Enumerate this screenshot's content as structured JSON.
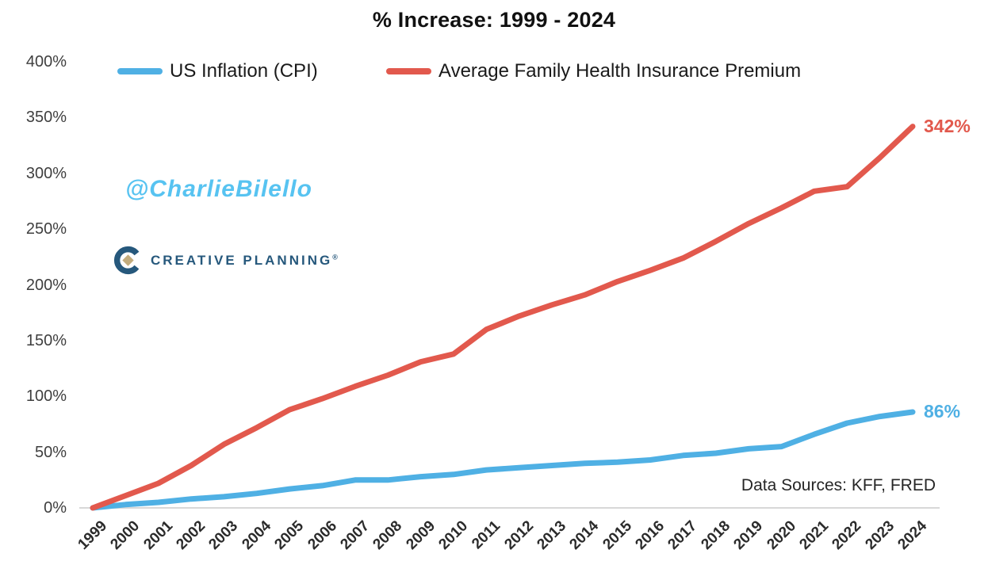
{
  "title": "% Increase: 1999 - 2024",
  "watermark": {
    "handle": "@CharlieBilello",
    "brand": "CREATIVE PLANNING",
    "brand_mark": "®"
  },
  "footnote": {
    "text": "Data Sources: KFF, FRED"
  },
  "colors": {
    "cpi_blue": "#4fb0e4",
    "premium_red": "#e2594d",
    "handle_blue": "#57c3f1",
    "brand_navy": "#26587c",
    "brand_gold": "#c3ac7d",
    "axis_line": "#d8d8d8"
  },
  "chart_data": {
    "type": "line",
    "title": "% Increase: 1999 - 2024",
    "xlabel": "",
    "ylabel": "",
    "x": [
      1999,
      2000,
      2001,
      2002,
      2003,
      2004,
      2005,
      2006,
      2007,
      2008,
      2009,
      2010,
      2011,
      2012,
      2013,
      2014,
      2015,
      2016,
      2017,
      2018,
      2019,
      2020,
      2021,
      2022,
      2023,
      2024
    ],
    "series": [
      {
        "name": "US Inflation (CPI)",
        "color": "#4fb0e4",
        "end_label": "86%",
        "values": [
          0,
          3,
          5,
          8,
          10,
          13,
          17,
          20,
          25,
          25,
          28,
          30,
          34,
          36,
          38,
          40,
          41,
          43,
          47,
          49,
          53,
          55,
          66,
          76,
          82,
          86
        ]
      },
      {
        "name": "Average Family Health Insurance Premium",
        "color": "#e2594d",
        "end_label": "342%",
        "values": [
          0,
          11,
          22,
          38,
          57,
          72,
          88,
          98,
          109,
          119,
          131,
          138,
          160,
          172,
          182,
          191,
          203,
          213,
          224,
          239,
          255,
          269,
          284,
          288,
          314,
          342
        ]
      }
    ],
    "ylim": [
      0,
      400
    ],
    "yticks": [
      "0%",
      "50%",
      "100%",
      "150%",
      "200%",
      "250%",
      "300%",
      "350%",
      "400%"
    ],
    "grid": false,
    "legend_position": "top",
    "annotations": [
      "@CharlieBilello",
      "CREATIVE PLANNING",
      "Data Sources: KFF, FRED"
    ]
  }
}
